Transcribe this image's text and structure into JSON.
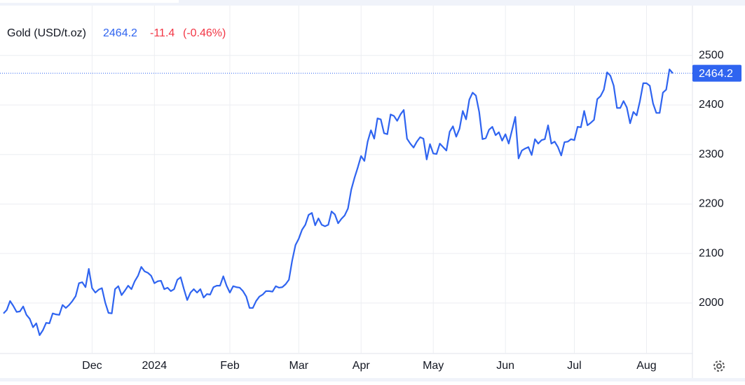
{
  "chart_data": {
    "type": "line",
    "title": "Gold (USD/t.oz)",
    "change": -11.4,
    "change_percent": {
      "value": -0.46,
      "label": "(-0.46%)"
    },
    "color": "#2f64f0",
    "grid": true,
    "y_axis_side": "right",
    "values": [
      1979,
      1986,
      2004,
      1994,
      1982,
      1983,
      1993,
      1976,
      1968,
      1951,
      1959,
      1935,
      1945,
      1960,
      1959,
      1979,
      1977,
      1976,
      1996,
      1990,
      1996,
      2004,
      2014,
      2040,
      2042,
      2032,
      2069,
      2030,
      2021,
      2027,
      2030,
      2001,
      1980,
      1979,
      2028,
      2034,
      2016,
      2025,
      2035,
      2028,
      2044,
      2055,
      2073,
      2064,
      2061,
      2055,
      2040,
      2044,
      2045,
      2028,
      2031,
      2024,
      2028,
      2047,
      2052,
      2028,
      2006,
      2021,
      2028,
      2021,
      2028,
      2011,
      2018,
      2017,
      2032,
      2035,
      2035,
      2054,
      2035,
      2021,
      2034,
      2032,
      2031,
      2024,
      2013,
      1990,
      1990,
      2004,
      2013,
      2017,
      2024,
      2024,
      2023,
      2034,
      2031,
      2032,
      2038,
      2047,
      2086,
      2117,
      2130,
      2148,
      2158,
      2178,
      2182,
      2157,
      2171,
      2158,
      2155,
      2158,
      2185,
      2179,
      2161,
      2170,
      2177,
      2191,
      2229,
      2253,
      2274,
      2297,
      2287,
      2326,
      2349,
      2332,
      2373,
      2371,
      2343,
      2341,
      2381,
      2378,
      2368,
      2381,
      2390,
      2332,
      2322,
      2314,
      2326,
      2335,
      2332,
      2290,
      2321,
      2302,
      2301,
      2322,
      2315,
      2308,
      2346,
      2357,
      2336,
      2352,
      2388,
      2371,
      2411,
      2425,
      2419,
      2386,
      2331,
      2333,
      2350,
      2356,
      2339,
      2345,
      2328,
      2341,
      2322,
      2349,
      2376,
      2292,
      2308,
      2312,
      2315,
      2299,
      2331,
      2322,
      2329,
      2331,
      2359,
      2322,
      2326,
      2315,
      2298,
      2325,
      2326,
      2331,
      2329,
      2356,
      2355,
      2388,
      2359,
      2364,
      2370,
      2412,
      2418,
      2431,
      2466,
      2459,
      2439,
      2394,
      2394,
      2408,
      2395,
      2363,
      2386,
      2379,
      2408,
      2444,
      2444,
      2439,
      2403,
      2384,
      2384,
      2425,
      2431,
      2472,
      2464.2
    ],
    "xlim": [
      0,
      210
    ],
    "xticks": [
      {
        "value": 27,
        "label": "Dec"
      },
      {
        "value": 46,
        "label": "2024"
      },
      {
        "value": 69,
        "label": "Feb"
      },
      {
        "value": 90,
        "label": "Mar"
      },
      {
        "value": 109,
        "label": "Apr"
      },
      {
        "value": 131,
        "label": "May"
      },
      {
        "value": 153,
        "label": "Jun"
      },
      {
        "value": 174,
        "label": "Jul"
      },
      {
        "value": 196,
        "label": "Aug"
      }
    ],
    "ylim": [
      1898,
      2598
    ],
    "yticks": [
      2000,
      2100,
      2200,
      2300,
      2400,
      2500
    ]
  }
}
